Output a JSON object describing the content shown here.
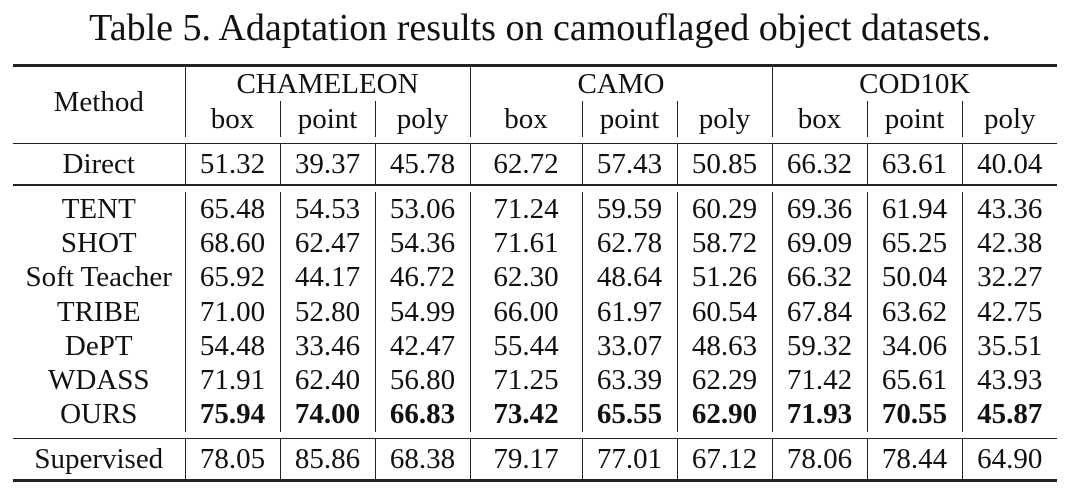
{
  "title": "Table 5. Adaptation results on camouflaged object datasets.",
  "header": {
    "method": "Method",
    "groups": [
      "CHAMELEON",
      "CAMO",
      "COD10K"
    ],
    "subcolumns": [
      "box",
      "point",
      "poly",
      "box",
      "point",
      "poly",
      "box",
      "point",
      "poly"
    ]
  },
  "baseline": {
    "method": "Direct",
    "values": [
      "51.32",
      "39.37",
      "45.78",
      "62.72",
      "57.43",
      "50.85",
      "66.32",
      "63.61",
      "40.04"
    ]
  },
  "rows": [
    {
      "method": "TENT",
      "values": [
        "65.48",
        "54.53",
        "53.06",
        "71.24",
        "59.59",
        "60.29",
        "69.36",
        "61.94",
        "43.36"
      ]
    },
    {
      "method": "SHOT",
      "values": [
        "68.60",
        "62.47",
        "54.36",
        "71.61",
        "62.78",
        "58.72",
        "69.09",
        "65.25",
        "42.38"
      ]
    },
    {
      "method": "Soft Teacher",
      "values": [
        "65.92",
        "44.17",
        "46.72",
        "62.30",
        "48.64",
        "51.26",
        "66.32",
        "50.04",
        "32.27"
      ]
    },
    {
      "method": "TRIBE",
      "values": [
        "71.00",
        "52.80",
        "54.99",
        "66.00",
        "61.97",
        "60.54",
        "67.84",
        "63.62",
        "42.75"
      ]
    },
    {
      "method": "DePT",
      "values": [
        "54.48",
        "33.46",
        "42.47",
        "55.44",
        "33.07",
        "48.63",
        "59.32",
        "34.06",
        "35.51"
      ]
    },
    {
      "method": "WDASS",
      "values": [
        "71.91",
        "62.40",
        "56.80",
        "71.25",
        "63.39",
        "62.29",
        "71.42",
        "65.61",
        "43.93"
      ]
    },
    {
      "method": "OURS",
      "bold": true,
      "values": [
        "75.94",
        "74.00",
        "66.83",
        "73.42",
        "65.55",
        "62.90",
        "71.93",
        "70.55",
        "45.87"
      ]
    }
  ],
  "upper_bound": {
    "method": "Supervised",
    "values": [
      "78.05",
      "85.86",
      "68.38",
      "79.17",
      "77.01",
      "67.12",
      "78.06",
      "78.44",
      "64.90"
    ]
  }
}
